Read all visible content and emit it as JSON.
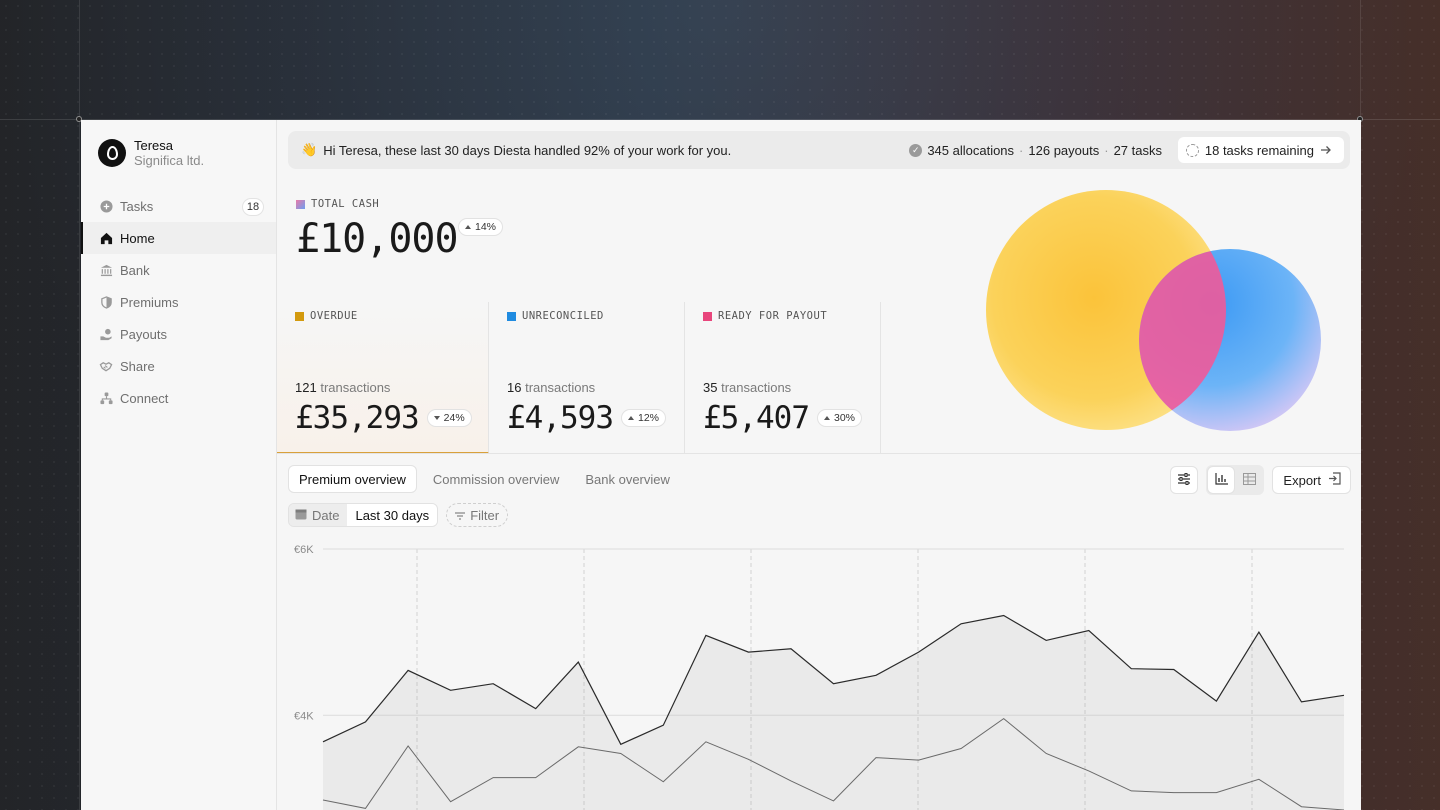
{
  "account": {
    "name": "Teresa",
    "org": "Significa ltd."
  },
  "nav": [
    {
      "label": "Tasks",
      "icon": "plus-circle-icon",
      "badge": "18"
    },
    {
      "label": "Home",
      "icon": "home-icon",
      "active": true
    },
    {
      "label": "Bank",
      "icon": "bank-icon"
    },
    {
      "label": "Premiums",
      "icon": "shield-icon"
    },
    {
      "label": "Payouts",
      "icon": "hand-coins-icon"
    },
    {
      "label": "Share",
      "icon": "handshake-icon"
    },
    {
      "label": "Connect",
      "icon": "connect-icon"
    }
  ],
  "banner": {
    "emoji": "👋",
    "message": "Hi Teresa, these last 30 days Diesta handled 92% of your work for you.",
    "allocations": "345 allocations",
    "payouts": "126 payouts",
    "tasks": "27 tasks",
    "separator": "·",
    "tasks_remaining": "18 tasks remaining"
  },
  "total_cash": {
    "label": "TOTAL CASH",
    "amount": "£10,000",
    "change": "14%",
    "direction": "up",
    "color": "#8a8ee0"
  },
  "cards": [
    {
      "label": "OVERDUE",
      "count": "121",
      "count_suffix": "transactions",
      "amount": "£35,293",
      "change": "24%",
      "direction": "down",
      "color": "#d39a0e"
    },
    {
      "label": "UNRECONCILED",
      "count": "16",
      "count_suffix": "transactions",
      "amount": "£4,593",
      "change": "12%",
      "direction": "up",
      "color": "#1f8be0"
    },
    {
      "label": "READY FOR PAYOUT",
      "count": "35",
      "count_suffix": "transactions",
      "amount": "£5,407",
      "change": "30%",
      "direction": "up",
      "color": "#e8467c"
    }
  ],
  "tabs": [
    "Premium overview",
    "Commission overview",
    "Bank overview"
  ],
  "toolbar": {
    "export_label": "Export"
  },
  "filters": {
    "date_key": "Date",
    "date_value": "Last 30 days",
    "filter_label": "Filter"
  },
  "chart_data": {
    "type": "area",
    "ylim": [
      2800,
      6000
    ],
    "yticks": [
      "€6K",
      "€4K"
    ],
    "ytick_values": [
      6000,
      4000
    ],
    "series": [
      {
        "values": [
          3680,
          3920,
          4540,
          4300,
          4380,
          4080,
          4640,
          3650,
          3880,
          4960,
          4760,
          4800,
          4380,
          4480,
          4760,
          5100,
          5200,
          4900,
          5020,
          4560,
          4550,
          4170,
          5000,
          4160,
          4240
        ]
      },
      {
        "values": [
          2980,
          2880,
          3630,
          2960,
          3250,
          3250,
          3620,
          3540,
          3200,
          3680,
          3470,
          3210,
          2970,
          3490,
          3460,
          3600,
          3960,
          3540,
          3330,
          3090,
          3070,
          3070,
          3230,
          2900,
          2860
        ]
      }
    ]
  }
}
